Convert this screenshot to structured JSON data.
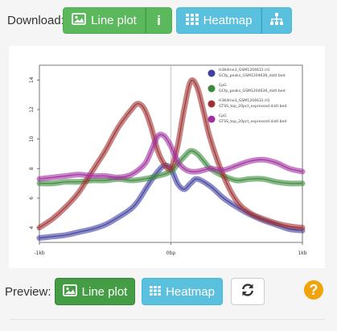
{
  "download": {
    "label": "Download:",
    "line_plot_label": "Line plot",
    "info_glyph": "i",
    "heatmap_label": "Heatmap"
  },
  "preview": {
    "label": "Preview:",
    "line_plot_label": "Line plot",
    "heatmap_label": "Heatmap"
  },
  "help_glyph": "?",
  "icons": {
    "image": "image-icon",
    "info": "info-icon",
    "grid": "grid-icon",
    "sitemap": "sitemap-icon",
    "refresh": "refresh-icon"
  },
  "colors": {
    "success": "#5cb85c",
    "success_active": "#449d44",
    "info": "#5bc0de",
    "warning": "#f0a30a"
  },
  "chart_data": {
    "type": "line",
    "x_tick_labels": [
      "-1kb",
      "0bp",
      "1kb"
    ],
    "y_tick_labels": [
      "4",
      "6",
      "8",
      "10",
      "12",
      "14"
    ],
    "x_range": [
      -1000,
      1000
    ],
    "ylim": [
      3,
      15
    ],
    "vertical_reference_line_at": 0,
    "legend_position": "top-right",
    "series": [
      {
        "name": "H3K4me3_GSM1204631.H1 / GCfp_peaks_GSM1204636_distl.bed",
        "color": "#4040a0",
        "x": [
          -1000,
          -900,
          -800,
          -700,
          -600,
          -500,
          -400,
          -300,
          -250,
          -200,
          -150,
          -100,
          -50,
          0,
          50,
          100,
          150,
          200,
          300,
          400,
          500,
          600,
          700,
          800,
          900,
          1000
        ],
        "values": [
          3.3,
          3.4,
          3.5,
          3.7,
          3.9,
          4.2,
          4.7,
          5.3,
          5.8,
          6.5,
          7.2,
          7.8,
          8.2,
          8.0,
          7.0,
          6.6,
          7.0,
          7.3,
          6.8,
          6.0,
          5.4,
          4.9,
          4.5,
          4.2,
          3.9,
          3.8
        ]
      },
      {
        "name": "CpG / GCfp_peaks_GSM1204636_distl.bed",
        "color": "#3a8a3a",
        "x": [
          -1000,
          -900,
          -800,
          -700,
          -600,
          -500,
          -400,
          -300,
          -200,
          -100,
          0,
          50,
          100,
          150,
          200,
          250,
          300,
          400,
          500,
          600,
          700,
          800,
          900,
          1000
        ],
        "values": [
          7.0,
          7.0,
          7.1,
          7.1,
          7.2,
          7.2,
          7.3,
          7.2,
          7.3,
          7.5,
          7.8,
          8.3,
          8.8,
          9.2,
          9.0,
          8.5,
          8.0,
          7.5,
          7.2,
          7.3,
          7.3,
          7.1,
          7.0,
          7.0
        ]
      },
      {
        "name": "H3K4me3_GSM1204631.H1 / GTSS_top_20pct_expressed.distl.bed",
        "color": "#a03030",
        "x": [
          -1000,
          -900,
          -800,
          -700,
          -600,
          -500,
          -400,
          -300,
          -250,
          -200,
          -150,
          -100,
          -50,
          0,
          50,
          100,
          150,
          200,
          250,
          300,
          400,
          500,
          600,
          700,
          800,
          900,
          1000
        ],
        "values": [
          4.0,
          4.6,
          5.4,
          6.4,
          7.8,
          9.2,
          10.8,
          12.0,
          12.4,
          12.0,
          10.8,
          9.2,
          8.3,
          8.0,
          9.5,
          12.0,
          13.9,
          13.5,
          11.8,
          10.0,
          7.5,
          5.8,
          5.0,
          4.6,
          4.3,
          4.1,
          4.0
        ]
      },
      {
        "name": "CpG / GTSS_top_20pct_expressed.distl.bed",
        "color": "#a030a0",
        "x": [
          -1000,
          -900,
          -800,
          -700,
          -600,
          -500,
          -400,
          -300,
          -200,
          -150,
          -100,
          -50,
          0,
          50,
          100,
          150,
          200,
          250,
          300,
          400,
          500,
          600,
          700,
          800,
          900,
          1000
        ],
        "values": [
          7.3,
          7.4,
          7.5,
          7.6,
          7.5,
          7.5,
          7.4,
          7.6,
          8.3,
          9.2,
          10.2,
          10.2,
          9.5,
          8.5,
          8.0,
          7.8,
          7.8,
          7.9,
          8.0,
          7.9,
          8.2,
          8.5,
          8.6,
          8.4,
          8.0,
          7.8
        ]
      }
    ]
  }
}
